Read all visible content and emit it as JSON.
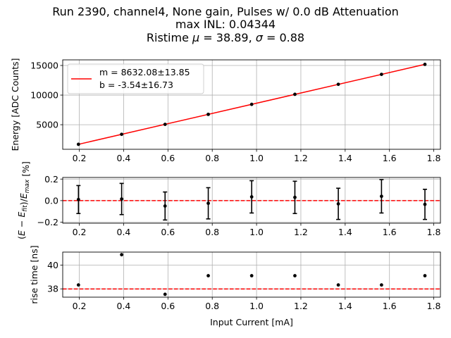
{
  "title": {
    "line1": "Run 2390, channel4, None gain, Pulses w/ 0.0 dB Attenuation",
    "line2": "max INL: 0.04344",
    "line3_prefix": "Ristime ",
    "line3_mu_value": " = 38.89, ",
    "line3_sigma_value": " = 0.88",
    "mu_symbol": "μ",
    "sigma_symbol": "σ"
  },
  "chart_data": [
    {
      "type": "line",
      "panel": "energy",
      "ylabel": "Energy [ADC Counts]",
      "xlabel": "",
      "xlim": [
        0.125,
        1.83
      ],
      "ylim": [
        850,
        15950
      ],
      "xticks": [
        0.2,
        0.4,
        0.6,
        0.8,
        1.0,
        1.2,
        1.4,
        1.6,
        1.8
      ],
      "xtick_labels": [
        "0.2",
        "0.4",
        "0.6",
        "0.8",
        "1.0",
        "1.2",
        "1.4",
        "1.6",
        "1.8"
      ],
      "yticks": [
        5000,
        10000,
        15000
      ],
      "ytick_labels": [
        "5000",
        "10000",
        "15000"
      ],
      "grid": true,
      "legend_position": "top-left",
      "legend": [
        {
          "text_m": "m = 8632.08±13.85",
          "text_b": "b = -3.54±16.73",
          "color": "#ff0000"
        }
      ],
      "fit": {
        "slope": 8632.08,
        "intercept": -3.54,
        "color": "#ff0000"
      },
      "points": {
        "x": [
          0.196,
          0.391,
          0.587,
          0.782,
          0.978,
          1.173,
          1.369,
          1.564,
          1.76
        ],
        "y": [
          1690,
          3380,
          5060,
          6750,
          8440,
          10130,
          11820,
          13500,
          15190
        ],
        "color": "#000000"
      }
    },
    {
      "type": "scatter",
      "panel": "residual",
      "ylabel": "(E − E_fit)/E_max [%]",
      "ylabel_parts": {
        "open": "(",
        "E1": "E",
        "minus": " − ",
        "E2": "E",
        "sub_fit": "fit",
        "close": ")/",
        "E3": "E",
        "sub_max": "max",
        "unit": " [%]"
      },
      "xlim": [
        0.125,
        1.83
      ],
      "ylim": [
        -0.21,
        0.215
      ],
      "xticks": [
        0.2,
        0.4,
        0.6,
        0.8,
        1.0,
        1.2,
        1.4,
        1.6,
        1.8
      ],
      "xtick_labels": [
        "0.2",
        "0.4",
        "0.6",
        "0.8",
        "1.0",
        "1.2",
        "1.4",
        "1.6",
        "1.8"
      ],
      "yticks": [
        -0.2,
        0.0,
        0.2
      ],
      "ytick_labels": [
        "−0.2",
        "0.0",
        "0.2"
      ],
      "grid": true,
      "reference_line": {
        "y": 0,
        "color": "#ff0000",
        "style": "dashed"
      },
      "points": {
        "x": [
          0.196,
          0.391,
          0.587,
          0.782,
          0.978,
          1.173,
          1.369,
          1.564,
          1.76
        ],
        "y": [
          0.01,
          0.015,
          -0.05,
          -0.025,
          0.035,
          0.03,
          -0.03,
          0.04,
          -0.035
        ],
        "yerr": [
          0.13,
          0.145,
          0.13,
          0.145,
          0.15,
          0.15,
          0.145,
          0.155,
          0.14
        ]
      }
    },
    {
      "type": "scatter",
      "panel": "risetime",
      "ylabel": "rise time [ns]",
      "xlabel": "Input Current [mA]",
      "xlim": [
        0.125,
        1.83
      ],
      "ylim": [
        37.3,
        41.1
      ],
      "xticks": [
        0.2,
        0.4,
        0.6,
        0.8,
        1.0,
        1.2,
        1.4,
        1.6,
        1.8
      ],
      "xtick_labels": [
        "0.2",
        "0.4",
        "0.6",
        "0.8",
        "1.0",
        "1.2",
        "1.4",
        "1.6",
        "1.8"
      ],
      "yticks": [
        38,
        40
      ],
      "ytick_labels": [
        "38",
        "40"
      ],
      "grid": true,
      "reference_line": {
        "y": 37.99,
        "color": "#ff0000",
        "style": "dashed"
      },
      "points": {
        "x": [
          0.196,
          0.391,
          0.587,
          0.782,
          0.978,
          1.173,
          1.369,
          1.564,
          1.76
        ],
        "y": [
          38.33,
          40.88,
          37.54,
          39.11,
          39.11,
          39.11,
          38.33,
          38.33,
          39.11
        ]
      }
    }
  ]
}
